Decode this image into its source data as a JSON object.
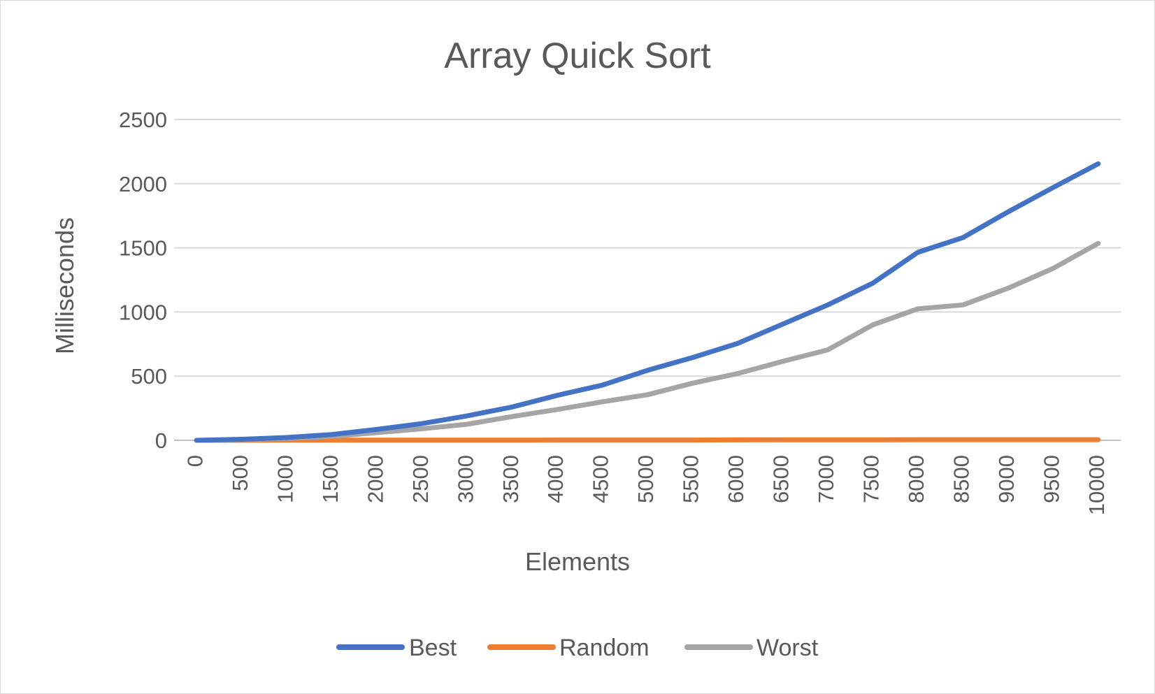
{
  "chart_data": {
    "type": "line",
    "title": "Array Quick Sort",
    "xlabel": "Elements",
    "ylabel": "Milliseconds",
    "x": [
      0,
      500,
      1000,
      1500,
      2000,
      2500,
      3000,
      3500,
      4000,
      4500,
      5000,
      5500,
      6000,
      6500,
      7000,
      7500,
      8000,
      8500,
      9000,
      9500,
      10000
    ],
    "categories": [
      "0",
      "500",
      "1000",
      "1500",
      "2000",
      "2500",
      "3000",
      "3500",
      "4000",
      "4500",
      "5000",
      "5500",
      "6000",
      "6500",
      "7000",
      "7500",
      "8000",
      "8500",
      "9000",
      "9500",
      "10000"
    ],
    "ylim": [
      0,
      2500
    ],
    "yticks": [
      "0",
      "500",
      "1000",
      "1500",
      "2000",
      "2500"
    ],
    "grid": true,
    "legend": "bottom",
    "series": [
      {
        "name": "Best",
        "color": "#4472C4",
        "values": [
          0,
          8,
          22,
          45,
          85,
          130,
          190,
          260,
          350,
          430,
          545,
          645,
          755,
          905,
          1055,
          1225,
          1465,
          1580,
          1780,
          1970,
          2155
        ]
      },
      {
        "name": "Random",
        "color": "#ED7D31",
        "values": [
          0,
          0,
          1,
          1,
          1,
          1,
          1,
          1,
          2,
          2,
          2,
          2,
          3,
          4,
          4,
          4,
          5,
          5,
          5,
          5,
          5
        ]
      },
      {
        "name": "Worst",
        "color": "#A5A5A5",
        "values": [
          0,
          5,
          15,
          30,
          60,
          90,
          125,
          185,
          240,
          300,
          355,
          445,
          520,
          615,
          705,
          900,
          1025,
          1055,
          1185,
          1340,
          1535
        ]
      }
    ]
  }
}
